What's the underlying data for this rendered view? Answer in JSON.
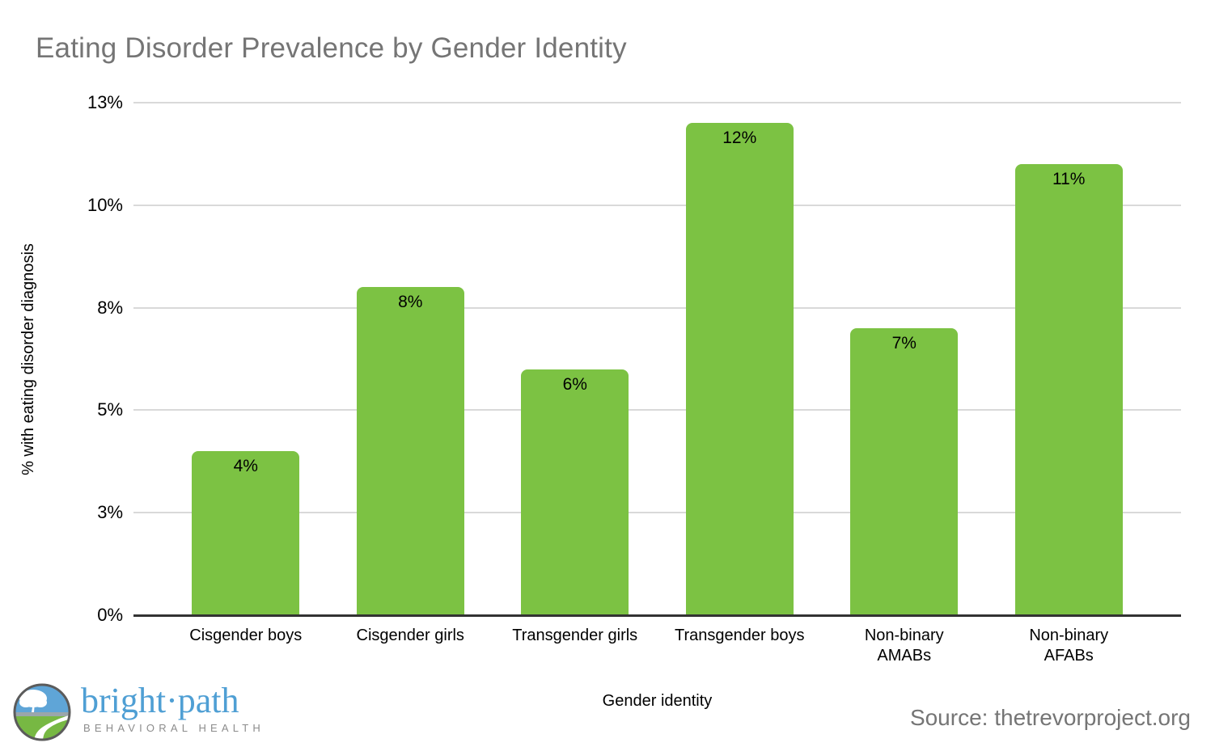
{
  "page": {
    "background": "#ffffff"
  },
  "title": {
    "text": "Eating Disorder Prevalence by Gender Identity",
    "color": "#757575"
  },
  "chart_data": {
    "type": "bar",
    "title": "Eating Disorder Prevalence by Gender Identity",
    "categories": [
      "Cisgender boys",
      "Cisgender girls",
      "Transgender girls",
      "Transgender boys",
      "Non-binary\nAMABs",
      "Non-binary\nAFABs"
    ],
    "values": [
      4,
      8,
      6,
      12,
      7,
      11
    ],
    "value_labels": [
      "4%",
      "8%",
      "6%",
      "12%",
      "7%",
      "11%"
    ],
    "xlabel": "Gender identity",
    "ylabel": "% with eating disorder diagnosis",
    "ylim": [
      0,
      12.5
    ],
    "y_ticks": [
      {
        "value": 12.5,
        "label": "13%"
      },
      {
        "value": 10,
        "label": "10%"
      },
      {
        "value": 7.5,
        "label": "8%"
      },
      {
        "value": 5,
        "label": "5%"
      },
      {
        "value": 2.5,
        "label": "3%"
      },
      {
        "value": 0,
        "label": "0%"
      }
    ],
    "grid": true,
    "legend": "none",
    "bar_color": "#7cc243",
    "gridline_color": "#d9d9d9",
    "baseline_color": "#333333",
    "label_color": "#000000"
  },
  "footer": {
    "logo": {
      "brand": "bright·path",
      "tagline": "BEHAVIORAL HEALTH",
      "brand_color": "#4f9fd4",
      "tagline_color": "#8c8c8c"
    },
    "source": {
      "text": "Source: thetrevorproject.org",
      "color": "#757575"
    }
  }
}
